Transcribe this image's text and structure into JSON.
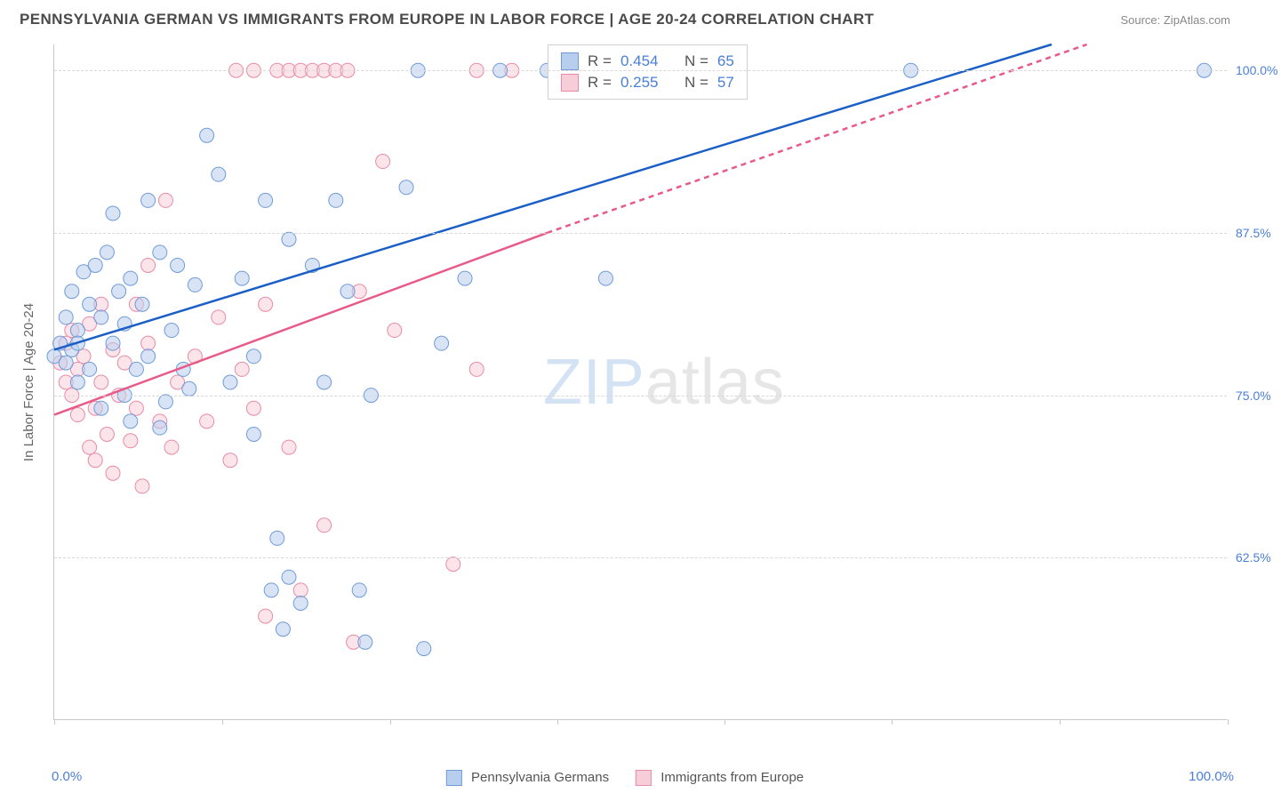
{
  "title": "PENNSYLVANIA GERMAN VS IMMIGRANTS FROM EUROPE IN LABOR FORCE | AGE 20-24 CORRELATION CHART",
  "source": "Source: ZipAtlas.com",
  "y_axis_label": "In Labor Force | Age 20-24",
  "watermark_bold": "ZIP",
  "watermark_light": "atlas",
  "colors": {
    "series1_fill": "#b8ceef",
    "series1_stroke": "#6f9bd8",
    "series1_line": "#1b5fc6",
    "series2_fill": "#f7cdd9",
    "series2_stroke": "#e88ba6",
    "series2_line": "#e85a88",
    "axis_text": "#4a7fd8",
    "grid": "#d8d8d8",
    "title_color": "#4a4a4a"
  },
  "chart": {
    "type": "scatter",
    "x_range": [
      0,
      100
    ],
    "y_range": [
      50,
      102
    ],
    "y_ticks": [
      62.5,
      75.0,
      87.5,
      100.0
    ],
    "y_tick_labels": [
      "62.5%",
      "75.0%",
      "87.5%",
      "100.0%"
    ],
    "x_ticks": [
      0,
      14.3,
      28.6,
      42.9,
      57.1,
      71.4,
      85.7,
      100
    ],
    "x_min_label": "0.0%",
    "x_max_label": "100.0%",
    "marker_radius": 8,
    "marker_opacity": 0.55,
    "line_width": 2.5
  },
  "stats": {
    "r_label": "R =",
    "n_label": "N =",
    "series1": {
      "R": "0.454",
      "N": "65"
    },
    "series2": {
      "R": "0.255",
      "N": "57"
    }
  },
  "legend": {
    "series1": "Pennsylvania Germans",
    "series2": "Immigrants from Europe"
  },
  "trend_lines": {
    "series1": {
      "x1": 0,
      "y1": 78.5,
      "x2": 85,
      "y2": 102
    },
    "series2_solid": {
      "x1": 0,
      "y1": 73.5,
      "x2": 42,
      "y2": 87.5
    },
    "series2_dash": {
      "x1": 42,
      "y1": 87.5,
      "x2": 88,
      "y2": 102
    }
  },
  "series1_points": [
    [
      0,
      78
    ],
    [
      0.5,
      79
    ],
    [
      1,
      77.5
    ],
    [
      1,
      81
    ],
    [
      1.5,
      78.5
    ],
    [
      1.5,
      83
    ],
    [
      2,
      80
    ],
    [
      2,
      76
    ],
    [
      2,
      79
    ],
    [
      2.5,
      84.5
    ],
    [
      3,
      82
    ],
    [
      3,
      77
    ],
    [
      3.5,
      85
    ],
    [
      4,
      81
    ],
    [
      4,
      74
    ],
    [
      4.5,
      86
    ],
    [
      5,
      79
    ],
    [
      5,
      89
    ],
    [
      5.5,
      83
    ],
    [
      6,
      75
    ],
    [
      6,
      80.5
    ],
    [
      6.5,
      84
    ],
    [
      6.5,
      73
    ],
    [
      7,
      77
    ],
    [
      7.5,
      82
    ],
    [
      8,
      78
    ],
    [
      8,
      90
    ],
    [
      9,
      72.5
    ],
    [
      9,
      86
    ],
    [
      9.5,
      74.5
    ],
    [
      10,
      80
    ],
    [
      10.5,
      85
    ],
    [
      11,
      77
    ],
    [
      11.5,
      75.5
    ],
    [
      12,
      83.5
    ],
    [
      13,
      95
    ],
    [
      14,
      92
    ],
    [
      15,
      76
    ],
    [
      16,
      84
    ],
    [
      17,
      78
    ],
    [
      17,
      72
    ],
    [
      18,
      90
    ],
    [
      18.5,
      60
    ],
    [
      19,
      64
    ],
    [
      19.5,
      57
    ],
    [
      20,
      87
    ],
    [
      20,
      61
    ],
    [
      21,
      59
    ],
    [
      22,
      85
    ],
    [
      23,
      76
    ],
    [
      24,
      90
    ],
    [
      25,
      83
    ],
    [
      26,
      60
    ],
    [
      26.5,
      56
    ],
    [
      27,
      75
    ],
    [
      30,
      91
    ],
    [
      31,
      100
    ],
    [
      31.5,
      55.5
    ],
    [
      33,
      79
    ],
    [
      35,
      84
    ],
    [
      38,
      100
    ],
    [
      42,
      100
    ],
    [
      47,
      84
    ],
    [
      73,
      100
    ],
    [
      98,
      100
    ]
  ],
  "series2_points": [
    [
      0.5,
      77.5
    ],
    [
      1,
      76
    ],
    [
      1,
      79
    ],
    [
      1.5,
      75
    ],
    [
      1.5,
      80
    ],
    [
      2,
      73.5
    ],
    [
      2,
      77
    ],
    [
      2.5,
      78
    ],
    [
      3,
      71
    ],
    [
      3,
      80.5
    ],
    [
      3.5,
      74
    ],
    [
      3.5,
      70
    ],
    [
      4,
      76
    ],
    [
      4,
      82
    ],
    [
      4.5,
      72
    ],
    [
      5,
      78.5
    ],
    [
      5,
      69
    ],
    [
      5.5,
      75
    ],
    [
      6,
      77.5
    ],
    [
      6.5,
      71.5
    ],
    [
      7,
      74
    ],
    [
      7,
      82
    ],
    [
      7.5,
      68
    ],
    [
      8,
      79
    ],
    [
      8,
      85
    ],
    [
      9,
      73
    ],
    [
      9.5,
      90
    ],
    [
      10,
      71
    ],
    [
      10.5,
      76
    ],
    [
      12,
      78
    ],
    [
      13,
      73
    ],
    [
      14,
      81
    ],
    [
      15,
      70
    ],
    [
      15.5,
      100
    ],
    [
      16,
      77
    ],
    [
      17,
      74
    ],
    [
      17,
      100
    ],
    [
      18,
      82
    ],
    [
      18,
      58
    ],
    [
      19,
      100
    ],
    [
      20,
      100
    ],
    [
      20,
      71
    ],
    [
      21,
      100
    ],
    [
      21,
      60
    ],
    [
      22,
      100
    ],
    [
      23,
      100
    ],
    [
      23,
      65
    ],
    [
      24,
      100
    ],
    [
      25,
      100
    ],
    [
      25.5,
      56
    ],
    [
      26,
      83
    ],
    [
      28,
      93
    ],
    [
      29,
      80
    ],
    [
      34,
      62
    ],
    [
      36,
      77
    ],
    [
      36,
      100
    ],
    [
      39,
      100
    ]
  ]
}
